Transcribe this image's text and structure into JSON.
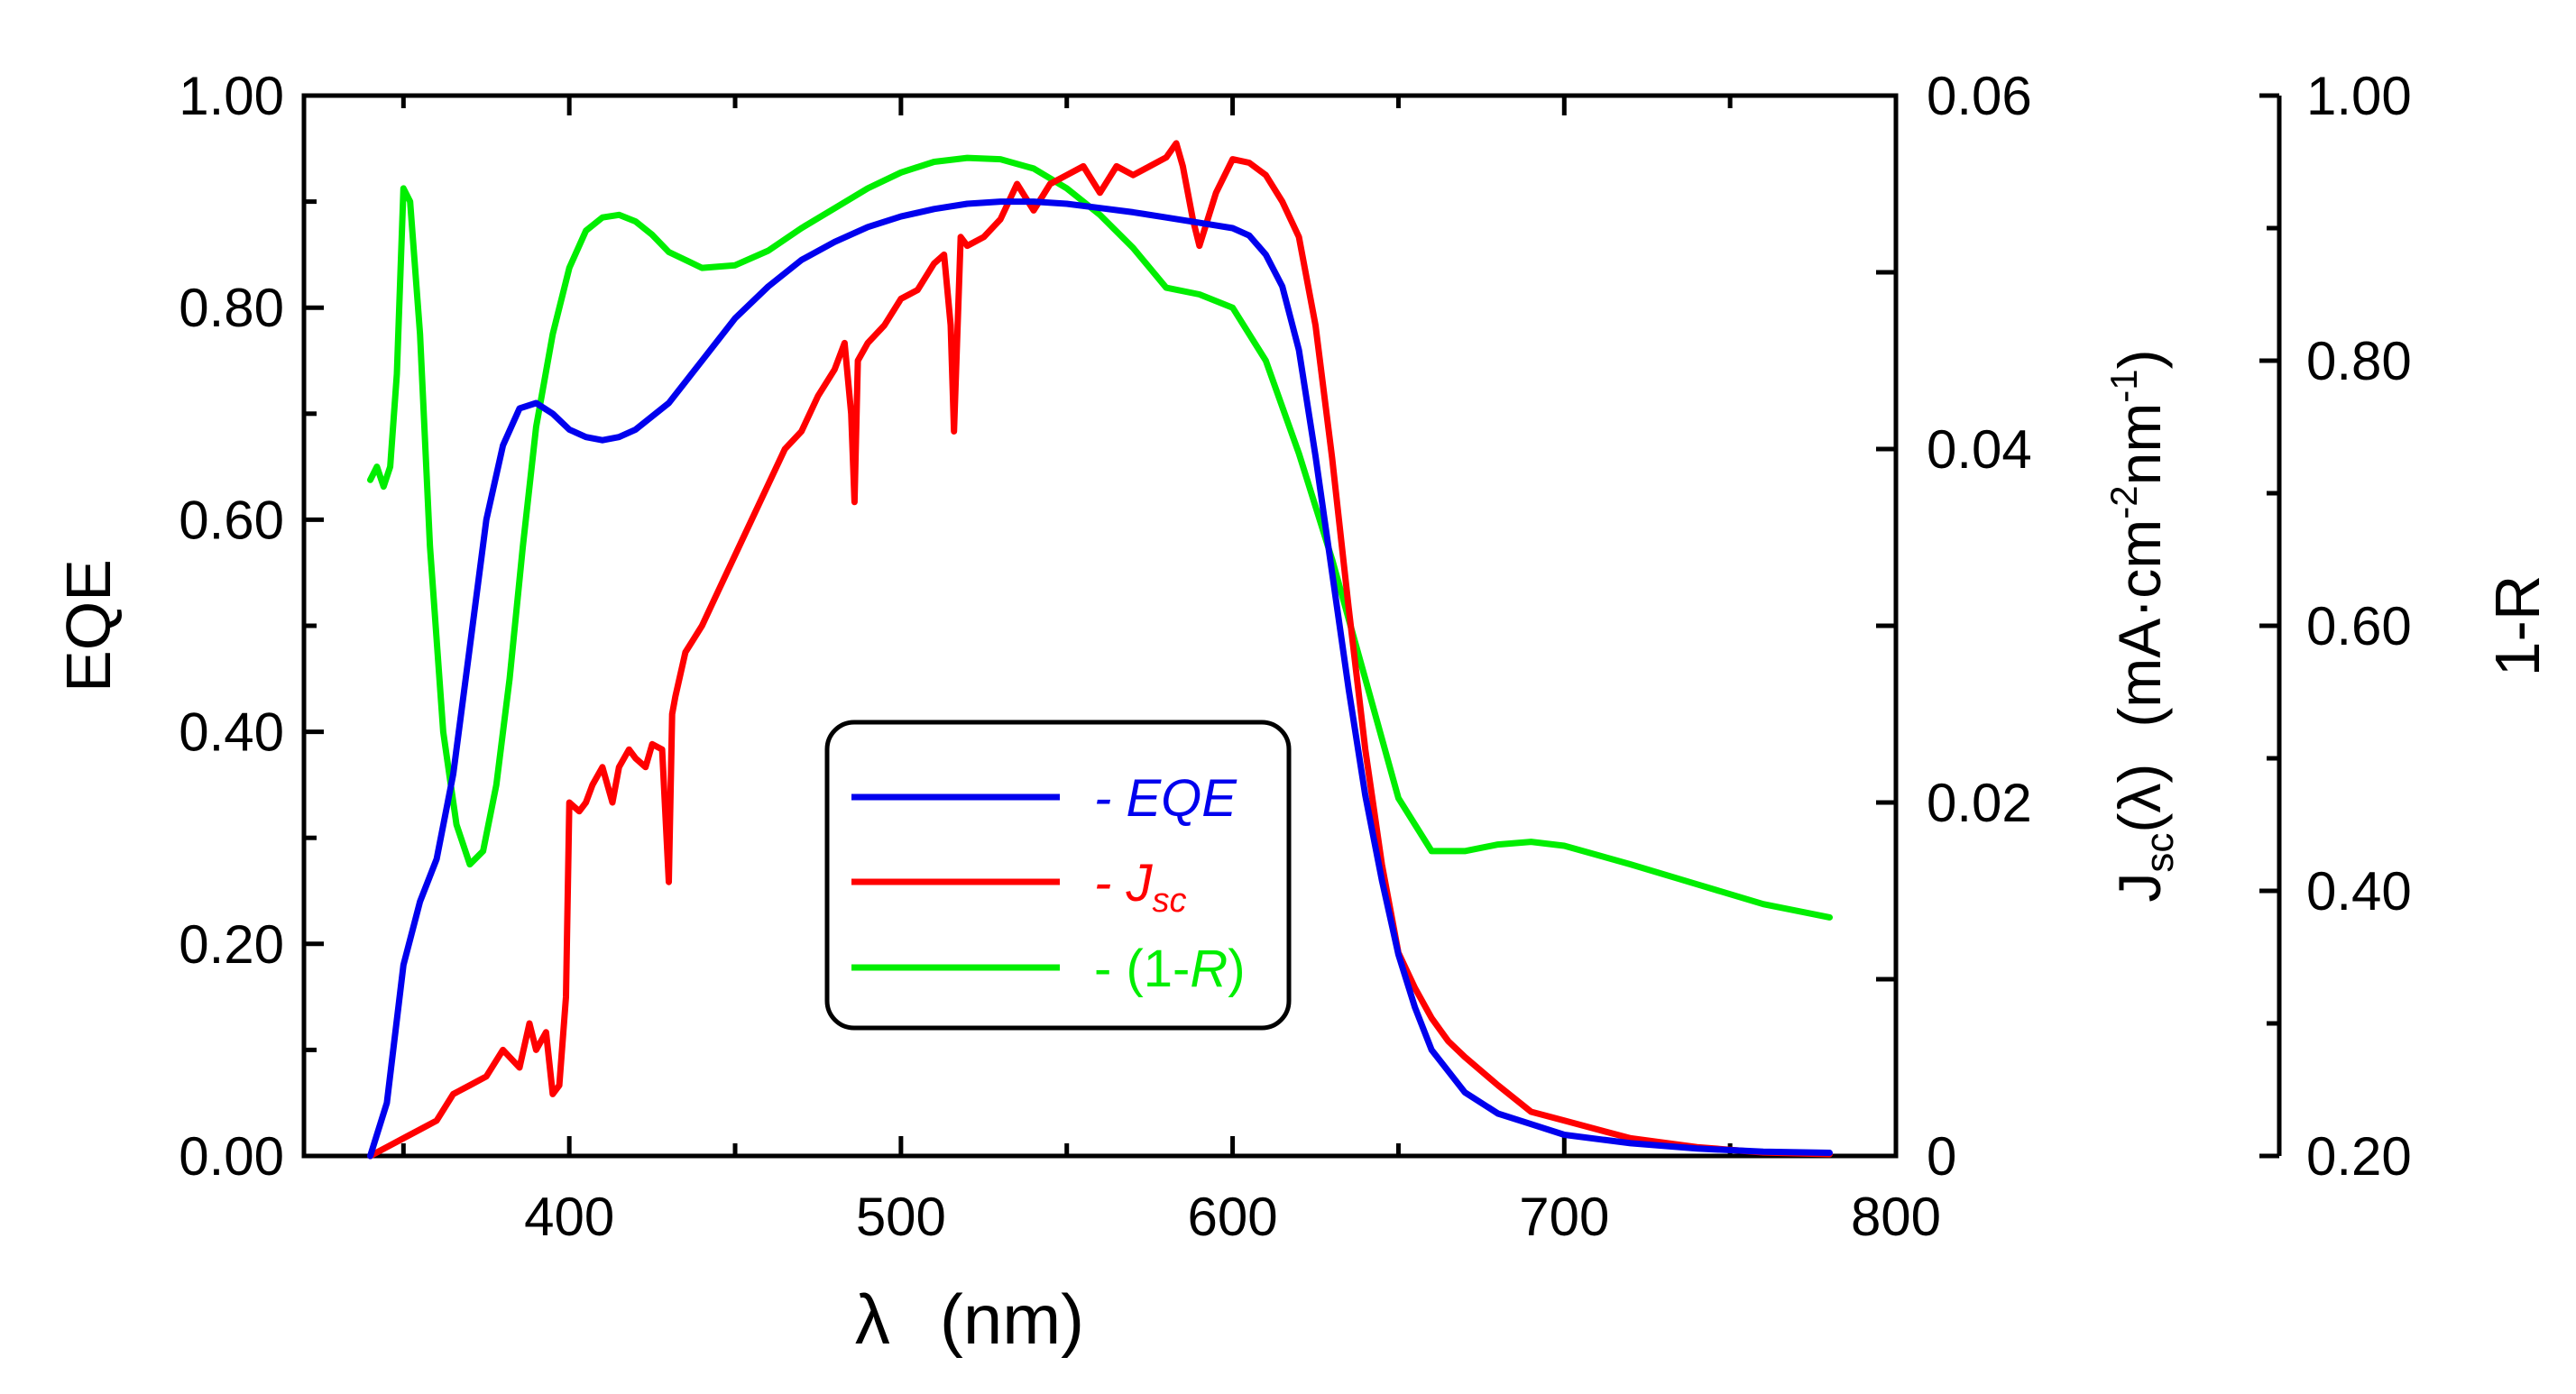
{
  "chart_data": {
    "type": "line",
    "x_axis": {
      "label_symbol": "λ",
      "label_unit": "(nm)",
      "range": [
        320,
        800
      ],
      "ticks": [
        400,
        500,
        600,
        700,
        800
      ],
      "tick_labels": [
        "400",
        "500",
        "600",
        "700",
        "800"
      ]
    },
    "y_left": {
      "label": "EQE",
      "range": [
        0,
        1
      ],
      "ticks": [
        0,
        0.2,
        0.4,
        0.6,
        0.8,
        1.0
      ],
      "tick_labels": [
        "0.00",
        "0.20",
        "0.40",
        "0.60",
        "0.80",
        "1.00"
      ]
    },
    "y_right1": {
      "label_main": "J",
      "label_sub": "sc",
      "label_arg": "(λ)",
      "label_unit_open": "(mA·cm",
      "label_unit_exp1": "-2",
      "label_unit_mid": "nm",
      "label_unit_exp2": "-1",
      "label_unit_close": ")",
      "range": [
        0,
        0.06
      ],
      "ticks": [
        0,
        0.02,
        0.04,
        0.06
      ],
      "tick_labels": [
        "0",
        "0.02",
        "0.04",
        "0.06"
      ],
      "minor_ticks": [
        0.01,
        0.03,
        0.05
      ]
    },
    "y_right2": {
      "label": "1-R",
      "range": [
        0.2,
        1.0
      ],
      "ticks": [
        0.2,
        0.4,
        0.6,
        0.8,
        1.0
      ],
      "tick_labels": [
        "0.20",
        "0.40",
        "0.60",
        "0.80",
        "1.00"
      ],
      "minor_ticks": [
        0.3,
        0.5,
        0.7,
        0.9
      ]
    },
    "legend": {
      "placement": "center",
      "entries": [
        {
          "prefix": "- ",
          "text": "EQE",
          "sub": "",
          "suffix": "",
          "color": "#0000ee"
        },
        {
          "prefix": "- ",
          "text": "J",
          "sub": "sc",
          "suffix": "",
          "color": "#ff0000"
        },
        {
          "prefix": "- ",
          "text": "(1-",
          "sub": "",
          "italic": "R",
          "suffix": ")",
          "color": "#00ee00"
        }
      ]
    },
    "series": [
      {
        "key": "eqe",
        "axis": "y_left",
        "color": "#0000ee",
        "x": [
          340,
          345,
          350,
          355,
          360,
          365,
          370,
          375,
          380,
          385,
          390,
          395,
          400,
          405,
          410,
          415,
          420,
          430,
          440,
          450,
          460,
          470,
          480,
          490,
          500,
          510,
          520,
          530,
          540,
          550,
          560,
          570,
          580,
          590,
          600,
          605,
          610,
          615,
          620,
          625,
          630,
          635,
          640,
          645,
          650,
          655,
          660,
          670,
          680,
          690,
          700,
          720,
          740,
          760,
          780
        ],
        "y": [
          0.0,
          0.05,
          0.18,
          0.24,
          0.28,
          0.36,
          0.48,
          0.6,
          0.67,
          0.705,
          0.71,
          0.7,
          0.685,
          0.678,
          0.675,
          0.678,
          0.685,
          0.71,
          0.75,
          0.79,
          0.82,
          0.845,
          0.862,
          0.876,
          0.886,
          0.893,
          0.898,
          0.9,
          0.9,
          0.898,
          0.894,
          0.89,
          0.885,
          0.88,
          0.875,
          0.868,
          0.85,
          0.82,
          0.76,
          0.66,
          0.55,
          0.44,
          0.34,
          0.26,
          0.19,
          0.14,
          0.1,
          0.06,
          0.04,
          0.03,
          0.02,
          0.012,
          0.007,
          0.004,
          0.003
        ]
      },
      {
        "key": "jsc",
        "axis": "y_right1",
        "color": "#ff0000",
        "x": [
          340,
          345,
          350,
          355,
          360,
          365,
          370,
          375,
          380,
          385,
          388,
          390,
          393,
          395,
          397,
          399,
          400,
          403,
          405,
          407,
          410,
          413,
          415,
          418,
          420,
          423,
          425,
          428,
          430,
          431,
          432,
          435,
          440,
          445,
          450,
          455,
          460,
          465,
          470,
          475,
          480,
          483,
          485,
          486,
          487,
          490,
          495,
          500,
          505,
          510,
          513,
          515,
          516,
          518,
          520,
          525,
          530,
          535,
          540,
          545,
          550,
          555,
          560,
          565,
          570,
          575,
          580,
          583,
          585,
          588,
          590,
          595,
          600,
          605,
          610,
          615,
          620,
          625,
          630,
          635,
          640,
          645,
          650,
          655,
          660,
          665,
          670,
          680,
          690,
          700,
          720,
          740,
          760,
          780
        ],
        "y": [
          0.0,
          0.0005,
          0.001,
          0.0015,
          0.002,
          0.0035,
          0.004,
          0.0045,
          0.006,
          0.005,
          0.0075,
          0.006,
          0.007,
          0.0035,
          0.004,
          0.009,
          0.02,
          0.0195,
          0.02,
          0.021,
          0.022,
          0.02,
          0.022,
          0.023,
          0.0225,
          0.022,
          0.0233,
          0.023,
          0.0155,
          0.025,
          0.026,
          0.0285,
          0.03,
          0.032,
          0.034,
          0.036,
          0.038,
          0.04,
          0.041,
          0.043,
          0.0445,
          0.046,
          0.042,
          0.037,
          0.045,
          0.046,
          0.047,
          0.0485,
          0.049,
          0.0505,
          0.051,
          0.047,
          0.041,
          0.052,
          0.0515,
          0.052,
          0.053,
          0.055,
          0.0535,
          0.055,
          0.0555,
          0.056,
          0.0545,
          0.056,
          0.0555,
          0.056,
          0.0565,
          0.0573,
          0.056,
          0.053,
          0.0515,
          0.0545,
          0.0564,
          0.0562,
          0.0555,
          0.054,
          0.052,
          0.047,
          0.0395,
          0.031,
          0.023,
          0.0165,
          0.0115,
          0.0095,
          0.0078,
          0.0065,
          0.0056,
          0.004,
          0.0025,
          0.002,
          0.001,
          0.0005,
          0.0002,
          0.0001
        ]
      },
      {
        "key": "one_minus_r",
        "axis": "y_right2",
        "color": "#00ee00",
        "x": [
          340,
          342,
          344,
          346,
          348,
          350,
          352,
          355,
          358,
          362,
          366,
          370,
          374,
          378,
          382,
          386,
          390,
          395,
          400,
          405,
          410,
          415,
          420,
          425,
          430,
          440,
          450,
          460,
          470,
          480,
          490,
          500,
          510,
          520,
          530,
          540,
          550,
          560,
          570,
          580,
          590,
          600,
          610,
          620,
          630,
          640,
          650,
          660,
          670,
          680,
          690,
          700,
          720,
          740,
          760,
          780
        ],
        "y": [
          0.71,
          0.72,
          0.705,
          0.72,
          0.79,
          0.93,
          0.92,
          0.82,
          0.66,
          0.52,
          0.45,
          0.42,
          0.43,
          0.48,
          0.56,
          0.66,
          0.75,
          0.82,
          0.87,
          0.898,
          0.908,
          0.91,
          0.905,
          0.895,
          0.882,
          0.87,
          0.872,
          0.883,
          0.9,
          0.915,
          0.93,
          0.942,
          0.95,
          0.953,
          0.952,
          0.945,
          0.93,
          0.91,
          0.885,
          0.855,
          0.85,
          0.84,
          0.8,
          0.73,
          0.65,
          0.56,
          0.47,
          0.43,
          0.43,
          0.435,
          0.437,
          0.434,
          0.42,
          0.405,
          0.39,
          0.38
        ]
      }
    ]
  }
}
